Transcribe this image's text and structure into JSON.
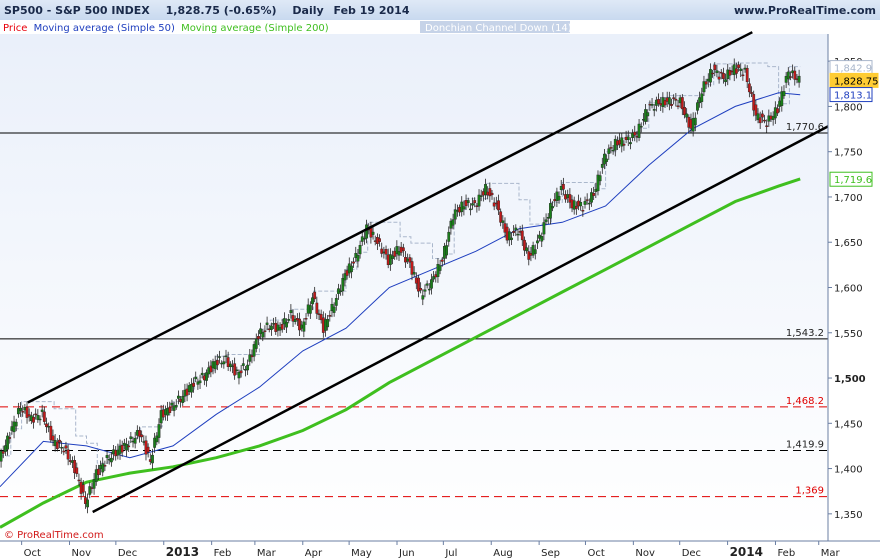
{
  "header": {
    "instrument": "SP500 - S&P 500 INDEX",
    "last_change": "1,828.75 (-0.65%)",
    "timeframe": "Daily",
    "date": "Feb 19 2014",
    "site": "www.ProRealTime.com"
  },
  "legend": {
    "price": "Price",
    "ma50": "Moving average (Simple 50)",
    "ma200": "Moving average (Simple 200)",
    "donchian": "Donchian Channel Down (14)"
  },
  "colors": {
    "price_label": "#e8000b",
    "ma50": "#1f3fbf",
    "ma200": "#3fbf1f",
    "candle_up": "#1a7f1a",
    "candle_down": "#c21a1a",
    "channel": "#000000",
    "donchian": "#aab7cc",
    "support_black": "#000000",
    "support_red": "#e00000",
    "last_price_bg": "#ffcc33"
  },
  "footer": {
    "copyright": "© ProRealTime.com"
  },
  "chart_data": {
    "type": "candlestick",
    "x_axis": {
      "tick_labels": [
        "Oct",
        "Nov",
        "Dec",
        "2013",
        "Feb",
        "Mar",
        "Apr",
        "May",
        "Jun",
        "Jul",
        "Aug",
        "Sep",
        "Oct",
        "Nov",
        "Dec",
        "2014",
        "Feb",
        "Mar"
      ],
      "bold_labels": [
        "2013",
        "2014"
      ],
      "range": [
        "2012-09-17",
        "2014-03-07"
      ]
    },
    "y_axis": {
      "range": [
        1320,
        1880
      ],
      "tick_labels": [
        "1,850",
        "1,800",
        "1,750",
        "1,700",
        "1,650",
        "1,600",
        "1,550",
        "1,500",
        "1,450",
        "1,400",
        "1,350"
      ],
      "bold_label": "1,500"
    },
    "horizontal_levels": [
      {
        "value": 1770.6,
        "label": "1,770.6",
        "style": "solid",
        "color": "#000000"
      },
      {
        "value": 1543.2,
        "label": "1,543.2",
        "style": "solid",
        "color": "#000000"
      },
      {
        "value": 1468.2,
        "label": "1,468.2",
        "style": "dashed",
        "color": "#e00000"
      },
      {
        "value": 1419.9,
        "label": "1,419.9",
        "style": "dashed",
        "color": "#000000"
      },
      {
        "value": 1369,
        "label": "1,369",
        "style": "dashed",
        "color": "#e00000"
      }
    ],
    "value_tags": [
      {
        "value": 1842.9,
        "label": "1,842.9",
        "color": "#aab7cc"
      },
      {
        "value": 1828.75,
        "label": "1,828.75",
        "color": "#ffcc33"
      },
      {
        "value": 1813.1,
        "label": "1,813.1",
        "color": "#1f3fbf"
      },
      {
        "value": 1719.6,
        "label": "1,719.6",
        "color": "#3fbf1f"
      }
    ],
    "trend_channel": [
      {
        "name": "upper",
        "from": [
          "2012-10-05",
          1473
        ],
        "to": [
          "2014-01-17",
          1882
        ]
      },
      {
        "name": "lower",
        "from": [
          "2012-11-16",
          1352
        ],
        "to": [
          "2014-03-07",
          1778
        ]
      }
    ],
    "series": [
      {
        "name": "Price",
        "points": [
          [
            "2012-09-17",
            1408
          ],
          [
            "2012-09-24",
            1438
          ],
          [
            "2012-10-01",
            1468
          ],
          [
            "2012-10-08",
            1455
          ],
          [
            "2012-10-15",
            1460
          ],
          [
            "2012-10-22",
            1430
          ],
          [
            "2012-10-29",
            1422
          ],
          [
            "2012-11-05",
            1400
          ],
          [
            "2012-11-12",
            1362
          ],
          [
            "2012-11-19",
            1395
          ],
          [
            "2012-11-26",
            1410
          ],
          [
            "2012-12-03",
            1420
          ],
          [
            "2012-12-10",
            1428
          ],
          [
            "2012-12-17",
            1440
          ],
          [
            "2012-12-24",
            1408
          ],
          [
            "2012-12-31",
            1460
          ],
          [
            "2013-01-07",
            1468
          ],
          [
            "2013-01-14",
            1480
          ],
          [
            "2013-01-21",
            1495
          ],
          [
            "2013-01-28",
            1502
          ],
          [
            "2013-02-04",
            1518
          ],
          [
            "2013-02-11",
            1520
          ],
          [
            "2013-02-18",
            1505
          ],
          [
            "2013-02-25",
            1515
          ],
          [
            "2013-03-04",
            1548
          ],
          [
            "2013-03-11",
            1558
          ],
          [
            "2013-03-18",
            1555
          ],
          [
            "2013-03-25",
            1570
          ],
          [
            "2013-04-01",
            1555
          ],
          [
            "2013-04-08",
            1590
          ],
          [
            "2013-04-15",
            1555
          ],
          [
            "2013-04-22",
            1582
          ],
          [
            "2013-04-29",
            1614
          ],
          [
            "2013-05-06",
            1633
          ],
          [
            "2013-05-13",
            1666
          ],
          [
            "2013-05-20",
            1650
          ],
          [
            "2013-05-27",
            1630
          ],
          [
            "2013-06-03",
            1643
          ],
          [
            "2013-06-10",
            1626
          ],
          [
            "2013-06-17",
            1592
          ],
          [
            "2013-06-24",
            1606
          ],
          [
            "2013-07-01",
            1631
          ],
          [
            "2013-07-08",
            1680
          ],
          [
            "2013-07-15",
            1692
          ],
          [
            "2013-07-22",
            1691
          ],
          [
            "2013-07-29",
            1709
          ],
          [
            "2013-08-05",
            1691
          ],
          [
            "2013-08-12",
            1655
          ],
          [
            "2013-08-19",
            1664
          ],
          [
            "2013-08-26",
            1633
          ],
          [
            "2013-09-02",
            1655
          ],
          [
            "2013-09-09",
            1688
          ],
          [
            "2013-09-16",
            1710
          ],
          [
            "2013-09-23",
            1691
          ],
          [
            "2013-09-30",
            1690
          ],
          [
            "2013-10-07",
            1703
          ],
          [
            "2013-10-14",
            1744
          ],
          [
            "2013-10-21",
            1759
          ],
          [
            "2013-10-28",
            1762
          ],
          [
            "2013-11-04",
            1770
          ],
          [
            "2013-11-11",
            1798
          ],
          [
            "2013-11-18",
            1804
          ],
          [
            "2013-11-25",
            1806
          ],
          [
            "2013-12-02",
            1805
          ],
          [
            "2013-12-09",
            1775
          ],
          [
            "2013-12-16",
            1818
          ],
          [
            "2013-12-23",
            1841
          ],
          [
            "2013-12-30",
            1831
          ],
          [
            "2014-01-06",
            1842
          ],
          [
            "2014-01-13",
            1838
          ],
          [
            "2014-01-20",
            1790
          ],
          [
            "2014-01-27",
            1782
          ],
          [
            "2014-02-03",
            1797
          ],
          [
            "2014-02-10",
            1838
          ],
          [
            "2014-02-17",
            1829
          ]
        ]
      },
      {
        "name": "Moving average (Simple 50)",
        "points": [
          [
            "2012-09-17",
            1380
          ],
          [
            "2012-10-15",
            1430
          ],
          [
            "2012-11-12",
            1425
          ],
          [
            "2012-12-10",
            1412
          ],
          [
            "2013-01-07",
            1425
          ],
          [
            "2013-02-04",
            1460
          ],
          [
            "2013-03-04",
            1490
          ],
          [
            "2013-04-01",
            1530
          ],
          [
            "2013-04-29",
            1555
          ],
          [
            "2013-05-27",
            1600
          ],
          [
            "2013-06-24",
            1620
          ],
          [
            "2013-07-22",
            1640
          ],
          [
            "2013-08-19",
            1665
          ],
          [
            "2013-09-16",
            1672
          ],
          [
            "2013-10-14",
            1690
          ],
          [
            "2013-11-11",
            1735
          ],
          [
            "2013-12-09",
            1775
          ],
          [
            "2014-01-06",
            1800
          ],
          [
            "2014-02-03",
            1815
          ],
          [
            "2014-02-17",
            1813
          ]
        ]
      },
      {
        "name": "Moving average (Simple 200)",
        "points": [
          [
            "2012-09-17",
            1335
          ],
          [
            "2012-10-15",
            1362
          ],
          [
            "2012-11-12",
            1385
          ],
          [
            "2012-12-10",
            1395
          ],
          [
            "2013-01-07",
            1402
          ],
          [
            "2013-02-04",
            1412
          ],
          [
            "2013-03-04",
            1425
          ],
          [
            "2013-04-01",
            1442
          ],
          [
            "2013-04-29",
            1465
          ],
          [
            "2013-05-27",
            1495
          ],
          [
            "2013-06-24",
            1520
          ],
          [
            "2013-07-22",
            1545
          ],
          [
            "2013-08-19",
            1570
          ],
          [
            "2013-09-16",
            1595
          ],
          [
            "2013-10-14",
            1620
          ],
          [
            "2013-11-11",
            1645
          ],
          [
            "2013-12-09",
            1670
          ],
          [
            "2014-01-06",
            1695
          ],
          [
            "2014-02-03",
            1712
          ],
          [
            "2014-02-17",
            1720
          ]
        ]
      }
    ]
  }
}
